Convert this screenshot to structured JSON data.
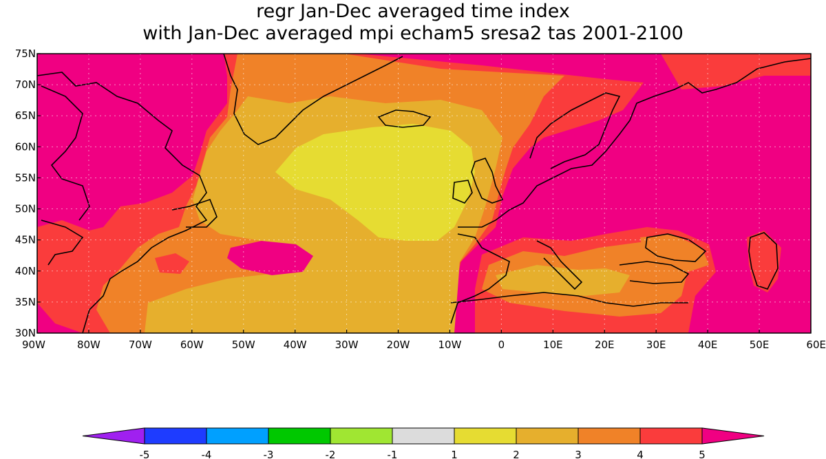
{
  "map": {
    "title_line1": "regr Jan-Dec averaged time index",
    "title_line2": "with Jan-Dec averaged mpi echam5 sresa2 tas 2001-2100",
    "lat_labels": [
      "75N",
      "70N",
      "65N",
      "60N",
      "55N",
      "50N",
      "45N",
      "40N",
      "35N",
      "30N"
    ],
    "lon_labels": [
      "90W",
      "80W",
      "70W",
      "60W",
      "50W",
      "40W",
      "30W",
      "20W",
      "10W",
      "0",
      "10E",
      "20E",
      "30E",
      "40E",
      "50E",
      "60E"
    ],
    "extent": {
      "lon": [
        -90,
        60
      ],
      "lat": [
        30,
        75
      ]
    },
    "grid": true
  },
  "legend": {
    "ticks": [
      "-5",
      "-4",
      "-3",
      "-2",
      "-1",
      "1",
      "2",
      "3",
      "4",
      "5"
    ],
    "bins": [
      {
        "range": "< -5",
        "color": "#a020f0"
      },
      {
        "range": "-5 to -4",
        "color": "#1e3cff"
      },
      {
        "range": "-4 to -3",
        "color": "#00a0ff"
      },
      {
        "range": "-3 to -2",
        "color": "#00c800"
      },
      {
        "range": "-2 to -1",
        "color": "#a0e632"
      },
      {
        "range": "-1 to 1",
        "color": "#dcdcdc"
      },
      {
        "range": "1 to 2",
        "color": "#e6dc32"
      },
      {
        "range": "2 to 3",
        "color": "#e6af2d"
      },
      {
        "range": "3 to 4",
        "color": "#f08228"
      },
      {
        "range": "4 to 5",
        "color": "#fa3c3c"
      },
      {
        "range": "> 5",
        "color": "#f00082"
      }
    ]
  }
}
